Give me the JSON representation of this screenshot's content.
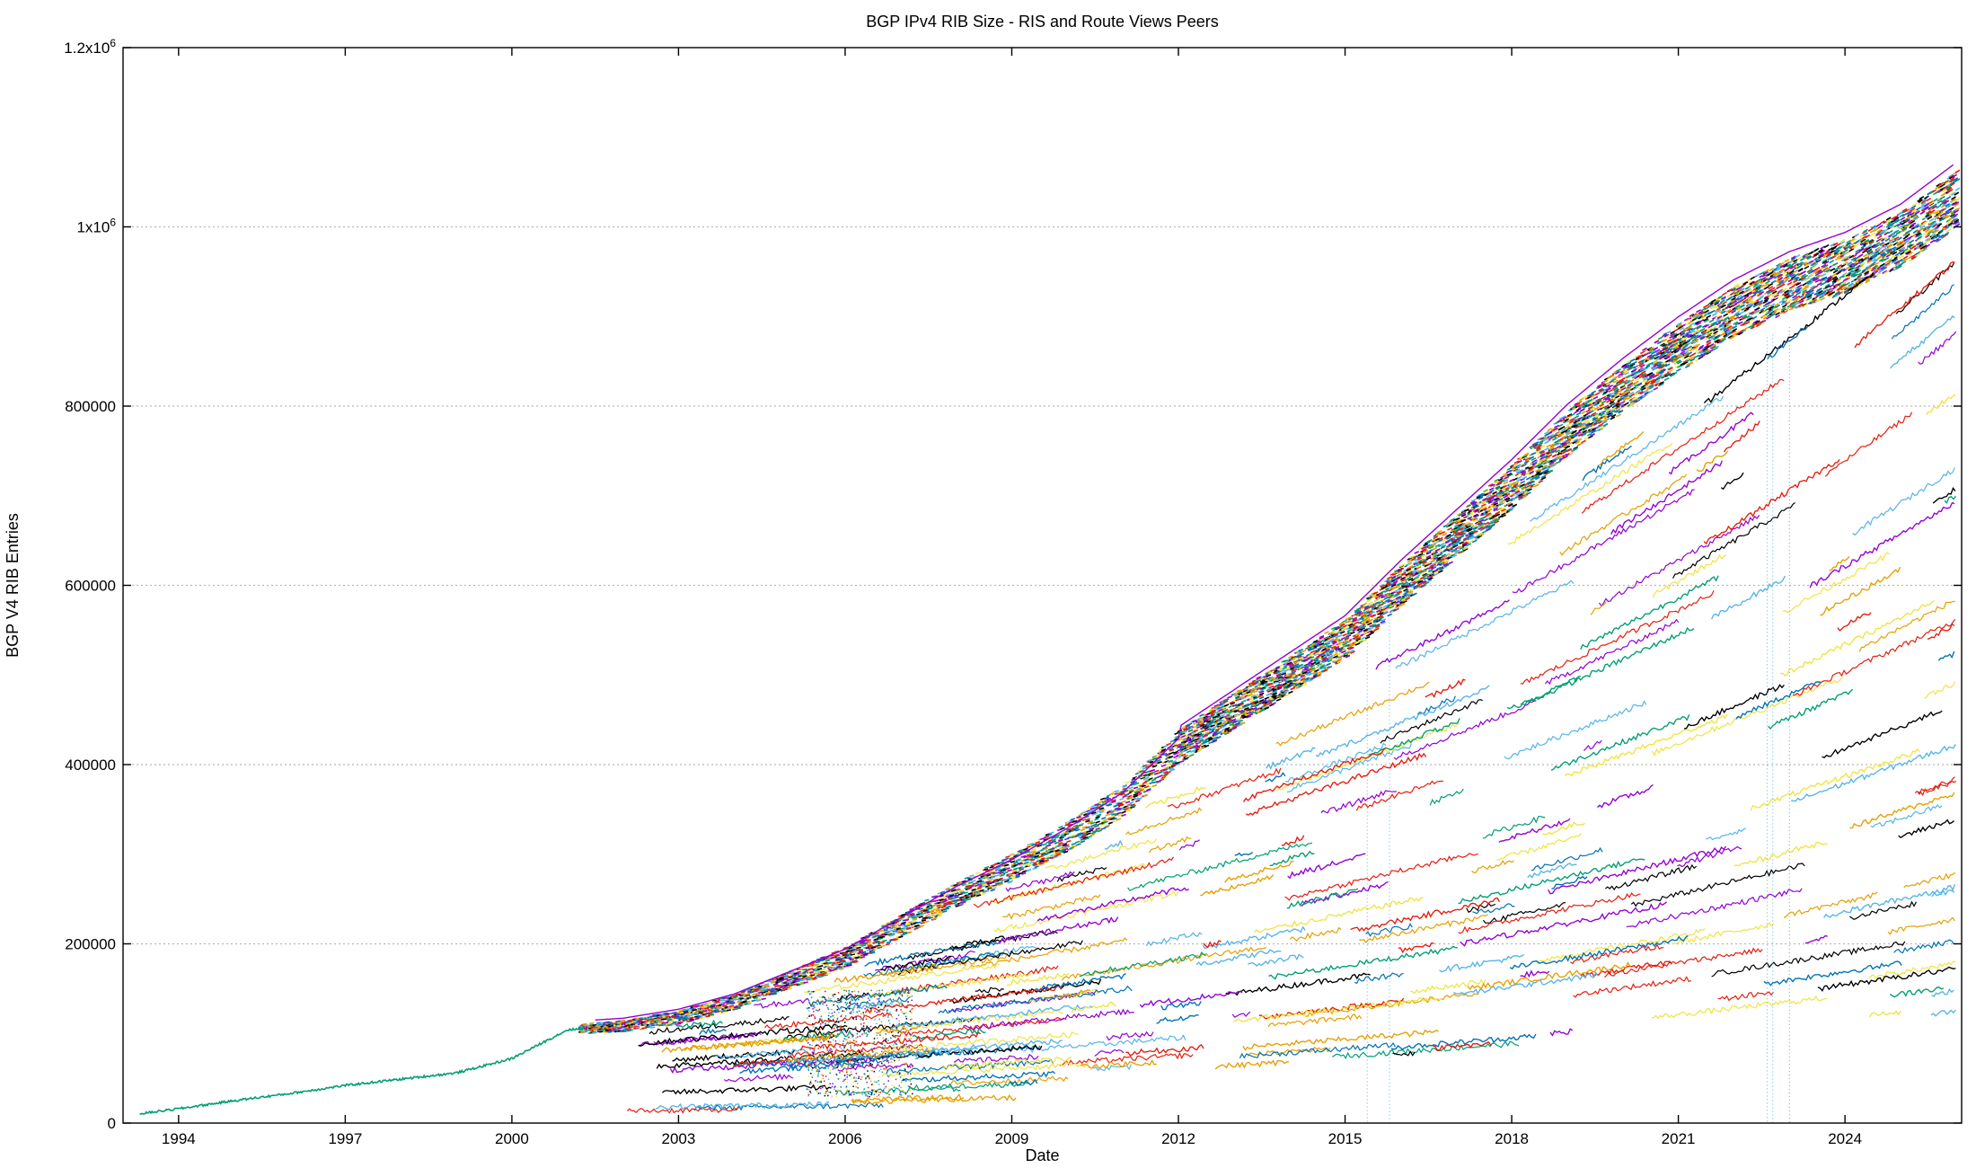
{
  "chart_data": {
    "type": "scatter",
    "title": "BGP IPv4 RIB Size - RIS and Route Views Peers",
    "xlabel": "Date",
    "ylabel": "BGP V4 RIB Entries",
    "xlim": [
      1993.0,
      2026.1
    ],
    "ylim": [
      0,
      1200000
    ],
    "x_ticks": [
      {
        "value": 1994,
        "label": "1994"
      },
      {
        "value": 1997,
        "label": "1997"
      },
      {
        "value": 2000,
        "label": "2000"
      },
      {
        "value": 2003,
        "label": "2003"
      },
      {
        "value": 2006,
        "label": "2006"
      },
      {
        "value": 2009,
        "label": "2009"
      },
      {
        "value": 2012,
        "label": "2012"
      },
      {
        "value": 2015,
        "label": "2015"
      },
      {
        "value": 2018,
        "label": "2018"
      },
      {
        "value": 2021,
        "label": "2021"
      },
      {
        "value": 2024,
        "label": "2024"
      }
    ],
    "y_ticks": [
      {
        "value": 0,
        "label": "0",
        "sup": ""
      },
      {
        "value": 200000,
        "label": "200000",
        "sup": ""
      },
      {
        "value": 400000,
        "label": "400000",
        "sup": ""
      },
      {
        "value": 600000,
        "label": "600000",
        "sup": ""
      },
      {
        "value": 800000,
        "label": "800000",
        "sup": ""
      },
      {
        "value": 1000000,
        "label": "1x10",
        "sup": "6"
      },
      {
        "value": 1200000,
        "label": "1.2x10",
        "sup": "6"
      }
    ],
    "grid": true,
    "legend": "none",
    "palette": [
      "#9400d3",
      "#009e73",
      "#56b4e9",
      "#e69f00",
      "#f0e442",
      "#0072b2",
      "#e51e10",
      "#000000"
    ],
    "main_trend": {
      "x": [
        1993.0,
        1994.0,
        1995.0,
        1996.0,
        1997.0,
        1998.0,
        1999.0,
        2000.0,
        2001.0,
        2002.0,
        2003.0,
        2004.0,
        2005.0,
        2006.0,
        2007.0,
        2008.0,
        2009.0,
        2010.0,
        2011.0,
        2012.0,
        2013.0,
        2014.0,
        2015.0,
        2016.0,
        2017.0,
        2018.0,
        2019.0,
        2020.0,
        2021.0,
        2022.0,
        2023.0,
        2024.0,
        2025.0,
        2026.0
      ],
      "y": [
        8000,
        16000,
        25000,
        33000,
        42000,
        49000,
        56000,
        72000,
        104000,
        108000,
        118000,
        135000,
        160000,
        185000,
        220000,
        255000,
        285000,
        320000,
        360000,
        420000,
        460000,
        500000,
        540000,
        600000,
        655000,
        710000,
        770000,
        820000,
        865000,
        905000,
        935000,
        955000,
        985000,
        1030000
      ]
    },
    "peer_fill_note": "many overlapping peer series"
  }
}
